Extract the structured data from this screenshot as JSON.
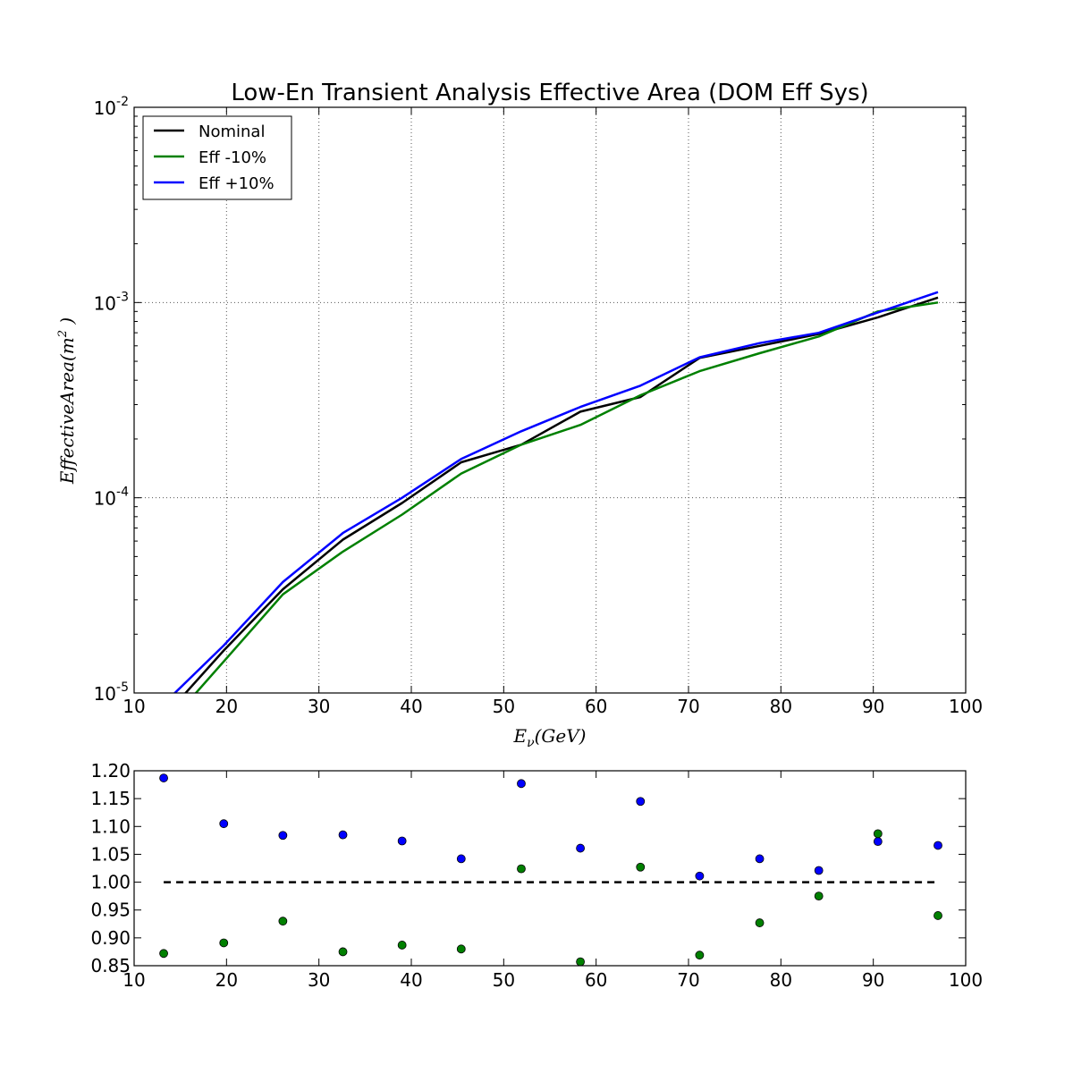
{
  "chart_data": [
    {
      "type": "line",
      "title": "Low-En Transient Analysis Effective Area (DOM Eff Sys)",
      "xlabel": "E_ν(GeV)",
      "ylabel": "EffectiveArea(m²)",
      "xscale": "linear",
      "yscale": "log",
      "xlim": [
        10,
        100
      ],
      "ylim": [
        1e-05,
        0.01
      ],
      "grid": true,
      "legend_position": "top-left",
      "x_ticks": [
        "10",
        "20",
        "30",
        "40",
        "50",
        "60",
        "70",
        "80",
        "90",
        "100"
      ],
      "y_ticks": [
        {
          "value": 1e-05,
          "base": "10",
          "exp": "-5"
        },
        {
          "value": 0.0001,
          "base": "10",
          "exp": "-4"
        },
        {
          "value": 0.001,
          "base": "10",
          "exp": "-3"
        },
        {
          "value": 0.01,
          "base": "10",
          "exp": "-2"
        }
      ],
      "x": [
        13.2,
        19.7,
        26.1,
        32.6,
        39.0,
        45.4,
        51.9,
        58.3,
        64.8,
        71.2,
        77.7,
        84.1,
        90.5,
        97.0
      ],
      "series": [
        {
          "name": "Nominal",
          "color": "#000000",
          "values": [
            7.5e-06,
            1.65e-05,
            3.4e-05,
            6.1e-05,
            9.4e-05,
            0.000152,
            0.000187,
            0.000276,
            0.000328,
            0.00052,
            0.0006,
            0.00069,
            0.00084,
            0.00106
          ]
        },
        {
          "name": "Eff -10%",
          "color": "#008000",
          "values": [
            6.5e-06,
            1.45e-05,
            3.2e-05,
            5.3e-05,
            8.2e-05,
            0.000133,
            0.000187,
            0.000236,
            0.000335,
            0.000445,
            0.00055,
            0.00067,
            0.0009,
            0.001
          ]
        },
        {
          "name": "Eff +10%",
          "color": "#0000ff",
          "values": [
            8.8e-06,
            1.75e-05,
            3.7e-05,
            6.6e-05,
            0.0001,
            0.000158,
            0.000219,
            0.000292,
            0.000375,
            0.000524,
            0.00062,
            0.0007,
            0.00089,
            0.00113
          ]
        }
      ]
    },
    {
      "type": "scatter",
      "xlim": [
        10,
        100
      ],
      "ylim": [
        0.85,
        1.2
      ],
      "x_ticks": [
        "10",
        "20",
        "30",
        "40",
        "50",
        "60",
        "70",
        "80",
        "90",
        "100"
      ],
      "y_ticks": [
        "0.85",
        "0.90",
        "0.95",
        "1.00",
        "1.05",
        "1.10",
        "1.15",
        "1.20"
      ],
      "reference_line": {
        "y": 1.0,
        "x": [
          13.2,
          97.0
        ],
        "color": "#000000",
        "style": "dashed"
      },
      "x": [
        13.2,
        19.7,
        26.1,
        32.6,
        39.0,
        45.4,
        51.9,
        58.3,
        64.8,
        71.2,
        77.7,
        84.1,
        90.5,
        97.0
      ],
      "series": [
        {
          "color": "#0000ff",
          "values": [
            1.187,
            1.105,
            1.084,
            1.085,
            1.074,
            1.042,
            1.177,
            1.061,
            1.145,
            1.011,
            1.042,
            1.021,
            1.073,
            1.066
          ]
        },
        {
          "color": "#008000",
          "values": [
            0.872,
            0.891,
            0.93,
            0.875,
            0.887,
            0.88,
            1.024,
            0.857,
            1.027,
            0.869,
            0.927,
            0.975,
            1.087,
            0.94
          ]
        }
      ]
    }
  ]
}
